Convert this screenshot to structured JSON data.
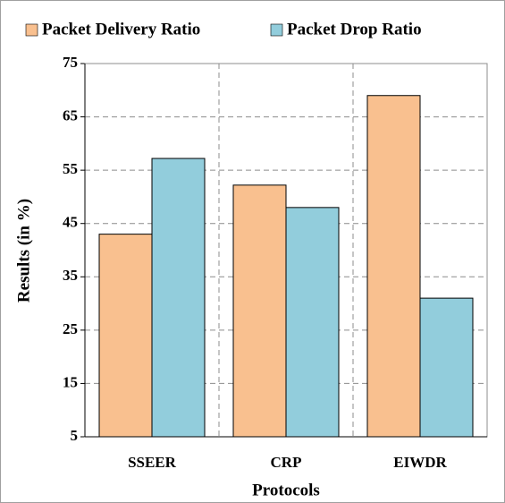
{
  "chart_data": {
    "type": "bar",
    "xlabel": "Protocols",
    "ylabel": "Results (in %)",
    "categories": [
      "SSEER",
      "CRP",
      "EIWDR"
    ],
    "series": [
      {
        "name": "Packet Delivery Ratio",
        "color": "#f9c08f",
        "values": [
          43,
          52.2,
          69
        ]
      },
      {
        "name": "Packet Drop Ratio",
        "color": "#92cddc",
        "values": [
          57.2,
          48,
          31
        ]
      }
    ],
    "ylim": [
      5,
      75
    ],
    "yticks": [
      5,
      15,
      25,
      35,
      45,
      55,
      65,
      75
    ],
    "grid": true,
    "legend": "top"
  }
}
